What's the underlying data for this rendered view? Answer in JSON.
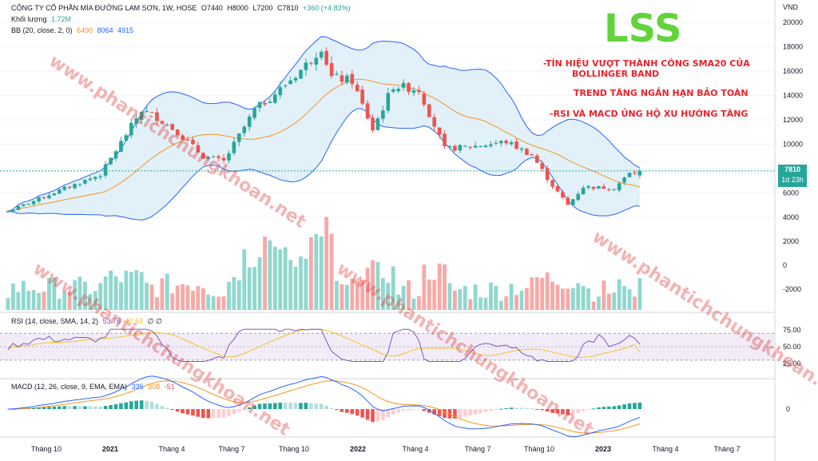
{
  "header": {
    "symbol_line": "CÔNG TY CỔ PHẦN MÍA ĐƯỜNG LAM SƠN, 1W, HOSE",
    "open": "O7440",
    "high": "H8000",
    "low": "L7200",
    "close": "C7810",
    "change": "+360 (+4.83%)",
    "volume_label": "Khối lượng",
    "volume_value": "1.72M",
    "bb_label": "BB (20, close, 2, 0)",
    "bb_mid": "6490",
    "bb_upper": "8064",
    "bb_lower": "4915"
  },
  "annotations": {
    "ticker": "LSS",
    "line1": "-TÍN HIỆU VƯỢT THÀNH CÔNG SMA20 CỦA",
    "line2": "BOLLINGER  BAND",
    "line3": "TREND TĂNG NGẮN HẠN BẢO TOÀN",
    "line4": "-RSI VÀ MACD ỦNG HỘ XU HƯỚNG TĂNG"
  },
  "price_tag": {
    "value": "7810",
    "countdown": "1d 23h"
  },
  "rsi_header": {
    "label": "RSI (14, close, SMA, 14, 2)",
    "v1": "53.76",
    "v2": "42.63",
    "v3": "∅ ∅"
  },
  "macd_header": {
    "label": "MACD (12, 26, close, 9, EMA, EMA)",
    "v1": "335",
    "v2": "308",
    "v3": "-51"
  },
  "watermark": "www.phantichchungkhoan.net",
  "colors": {
    "up": "#26a69a",
    "down": "#ef5350",
    "ticker": "#63d33c",
    "notes": "#e3262d",
    "bb_fill": "#dff0f8",
    "bb_line": "#2962ff",
    "sma": "#f7931a",
    "rsi": "#7e57c2"
  },
  "chart_data": [
    {
      "type": "candlestick",
      "title": "LSS 1W",
      "y_unit": "VND",
      "y_ticks": [
        4000,
        6000,
        8000,
        10000,
        12000,
        14000,
        16000,
        18000,
        20000
      ],
      "x_ticks": [
        "Tháng 10",
        "2021",
        "Tháng 4",
        "Tháng 7",
        "Tháng 10",
        "2022",
        "Tháng 4",
        "Tháng 7",
        "Tháng 10",
        "2023",
        "Tháng 4",
        "Tháng 7"
      ],
      "close_keypoints": [
        {
          "week": 0,
          "close": 4500
        },
        {
          "week": 10,
          "close": 6200
        },
        {
          "week": 18,
          "close": 7500
        },
        {
          "week": 26,
          "close": 12800
        },
        {
          "week": 29,
          "close": 12200
        },
        {
          "week": 33,
          "close": 11000
        },
        {
          "week": 38,
          "close": 9000
        },
        {
          "week": 42,
          "close": 8600
        },
        {
          "week": 48,
          "close": 12800
        },
        {
          "week": 53,
          "close": 14500
        },
        {
          "week": 58,
          "close": 16500
        },
        {
          "week": 61,
          "close": 18000
        },
        {
          "week": 63,
          "close": 15500
        },
        {
          "week": 67,
          "close": 15200
        },
        {
          "week": 71,
          "close": 11200
        },
        {
          "week": 75,
          "close": 14800
        },
        {
          "week": 80,
          "close": 14500
        },
        {
          "week": 85,
          "close": 9600
        },
        {
          "week": 90,
          "close": 9800
        },
        {
          "week": 97,
          "close": 10200
        },
        {
          "week": 102,
          "close": 9100
        },
        {
          "week": 106,
          "close": 6600
        },
        {
          "week": 109,
          "close": 5000
        },
        {
          "week": 112,
          "close": 6500
        },
        {
          "week": 118,
          "close": 6400
        },
        {
          "week": 121,
          "close": 7600
        },
        {
          "week": 123,
          "close": 7810
        }
      ],
      "last": {
        "open": 7440,
        "high": 8000,
        "low": 7200,
        "close": 7810
      },
      "bollinger_last": {
        "basis": 6490,
        "upper": 8064,
        "lower": 4915
      }
    },
    {
      "type": "bar",
      "title": "Khối lượng",
      "last_value": "1.72M"
    },
    {
      "type": "line",
      "title": "RSI",
      "y_ticks": [
        25.0,
        50.0,
        75.0
      ],
      "band": [
        30,
        70
      ],
      "last": [
        53.76,
        42.63
      ]
    },
    {
      "type": "line",
      "title": "MACD",
      "y_ticks": [
        0
      ],
      "last": {
        "macd": 335,
        "signal": 308,
        "hist": -51
      }
    }
  ]
}
